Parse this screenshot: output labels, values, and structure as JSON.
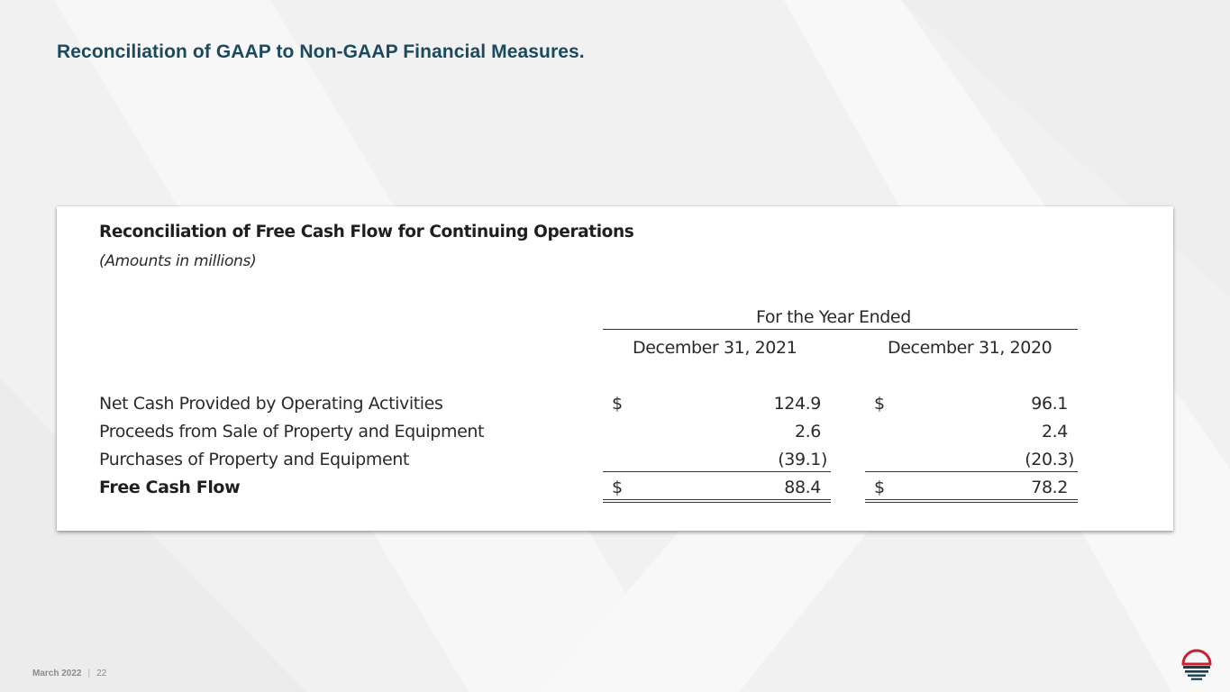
{
  "slide": {
    "title": "Reconciliation of GAAP to Non-GAAP Financial Measures."
  },
  "table": {
    "title": "Reconciliation of Free Cash Flow for Continuing Operations",
    "subtitle": "(Amounts in millions)",
    "period_header": "For the Year Ended",
    "columns": [
      "December 31, 2021",
      "December 31, 2020"
    ],
    "rows": [
      {
        "label": "Net Cash Provided by Operating Activities",
        "currency_2021": "$",
        "value_2021": "124.9",
        "currency_2020": "$",
        "value_2020": "96.1",
        "bold": false
      },
      {
        "label": "Proceeds from Sale of Property and Equipment",
        "currency_2021": "",
        "value_2021": "2.6",
        "currency_2020": "",
        "value_2020": "2.4",
        "bold": false
      },
      {
        "label": "Purchases of Property and Equipment",
        "currency_2021": "",
        "value_2021": "(39.1)",
        "currency_2020": "",
        "value_2020": "(20.3)",
        "bold": false
      },
      {
        "label": "Free Cash Flow",
        "currency_2021": "$",
        "value_2021": "88.4",
        "currency_2020": "$",
        "value_2020": "78.2",
        "bold": true
      }
    ]
  },
  "footer": {
    "date": "March 2022",
    "separator": "|",
    "page_number": "22"
  },
  "colors": {
    "title": "#1b4a5e",
    "logo_red": "#c8202f",
    "logo_dark": "#1b3a4b"
  },
  "icons": {
    "logo": "company-logo-icon"
  }
}
